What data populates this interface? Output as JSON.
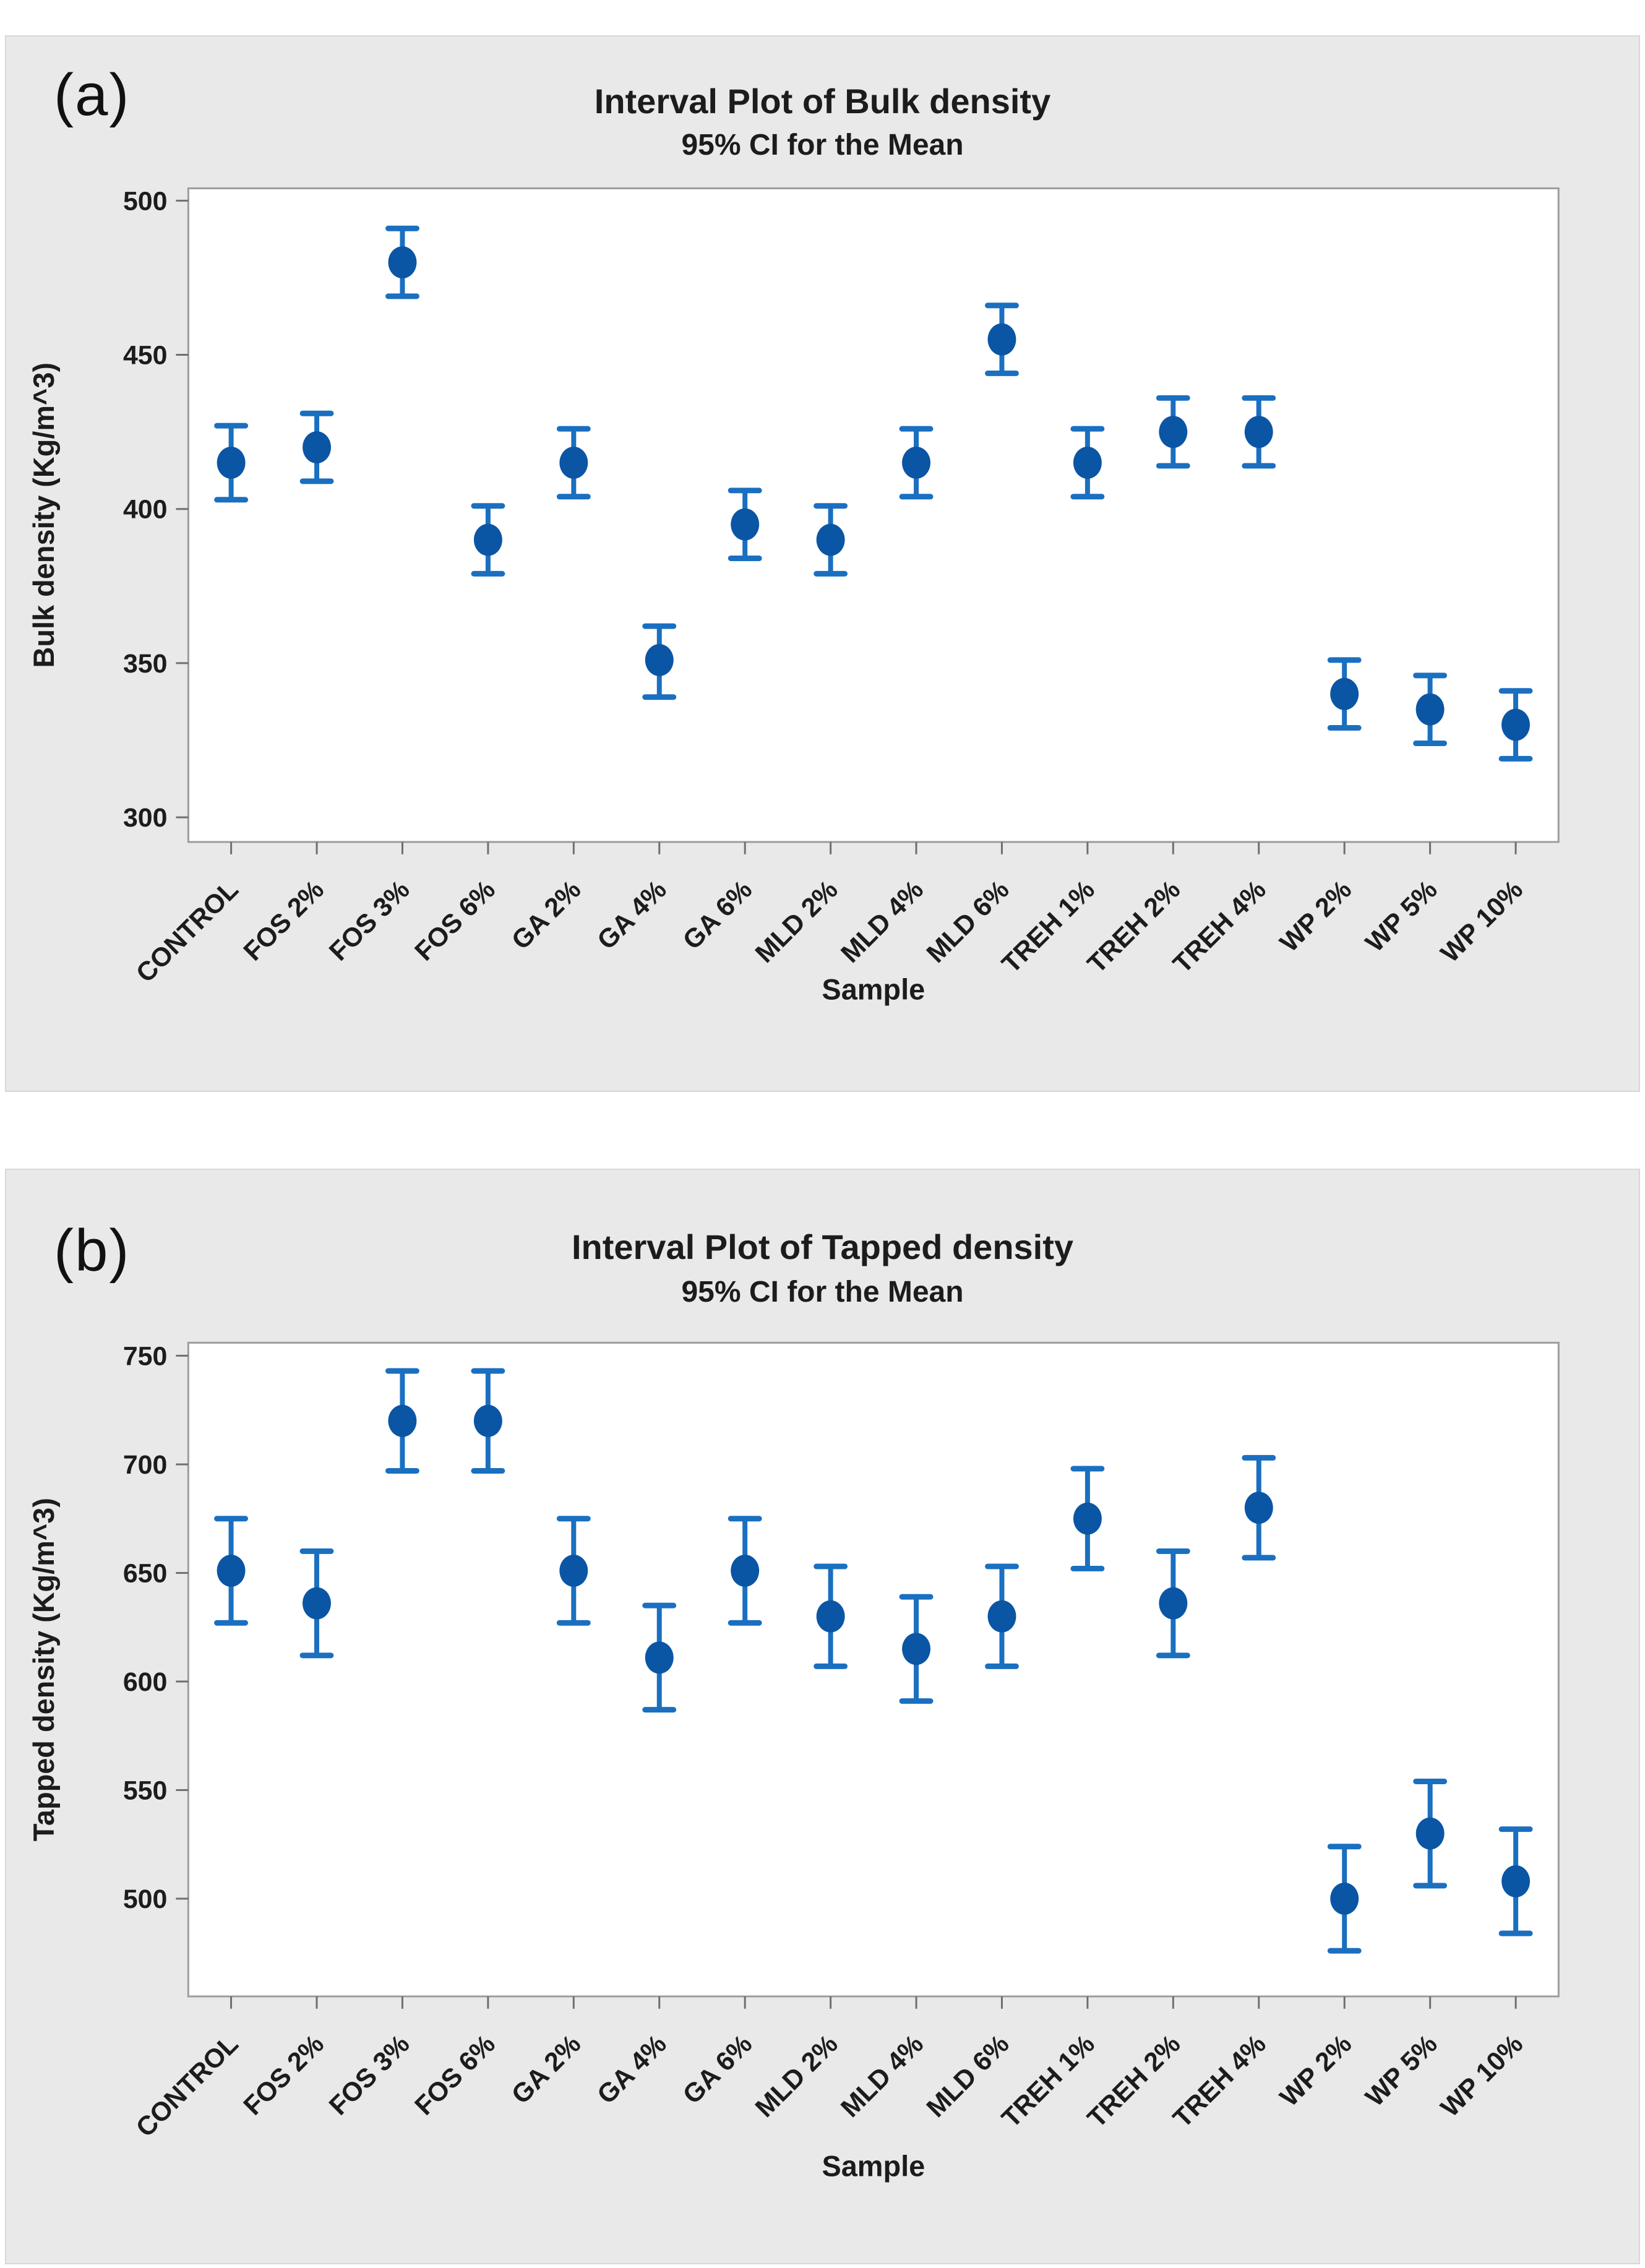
{
  "figure": {
    "background": "#ffffff"
  },
  "colors": {
    "panel_background": "#e9e9e9",
    "panel_border": "#d7d7d7",
    "plot_background": "#ffffff",
    "plot_frame": "#9c9c9c",
    "tick": "#6f6f6f",
    "text": "#1c1c1c",
    "marker_fill": "#0b55a5",
    "interval_line": "#1a6fc0"
  },
  "chart_data": [
    {
      "panel_label": "(a)",
      "type": "interval",
      "title": "Interval Plot of Bulk density",
      "subtitle": "95% CI for the Mean",
      "xlabel": "Sample",
      "ylabel": "Bulk density (Kg/m^3)",
      "categories": [
        "CONTROL",
        "FOS 2%",
        "FOS 3%",
        "FOS 6%",
        "GA 2%",
        "GA 4%",
        "GA 6%",
        "MLD 2%",
        "MLD 4%",
        "MLD 6%",
        "TREH 1%",
        "TREH 2%",
        "TREH 4%",
        "WP 2%",
        "WP 5%",
        "WP 10%"
      ],
      "means": [
        415,
        420,
        480,
        390,
        415,
        351,
        395,
        390,
        415,
        455,
        415,
        425,
        425,
        340,
        335,
        330
      ],
      "ci_low": [
        403,
        409,
        469,
        379,
        404,
        339,
        384,
        379,
        404,
        444,
        404,
        414,
        414,
        329,
        324,
        319
      ],
      "ci_high": [
        427,
        431,
        491,
        401,
        426,
        362,
        406,
        401,
        426,
        466,
        426,
        436,
        436,
        351,
        346,
        341
      ],
      "yticks": [
        300,
        350,
        400,
        450,
        500
      ],
      "ylim": [
        292,
        504
      ],
      "grid": false,
      "legend": "none"
    },
    {
      "panel_label": "(b)",
      "type": "interval",
      "title": "Interval Plot of Tapped density",
      "subtitle": "95% CI for the Mean",
      "xlabel": "Sample",
      "ylabel": "Tapped density (Kg/m^3)",
      "categories": [
        "CONTROL",
        "FOS 2%",
        "FOS 3%",
        "FOS 6%",
        "GA 2%",
        "GA 4%",
        "GA 6%",
        "MLD 2%",
        "MLD 4%",
        "MLD 6%",
        "TREH 1%",
        "TREH 2%",
        "TREH 4%",
        "WP 2%",
        "WP 5%",
        "WP 10%"
      ],
      "means": [
        651,
        636,
        720,
        720,
        651,
        611,
        651,
        630,
        615,
        630,
        675,
        636,
        680,
        500,
        530,
        508
      ],
      "ci_low": [
        627,
        612,
        697,
        697,
        627,
        587,
        627,
        607,
        591,
        607,
        652,
        612,
        657,
        476,
        506,
        484
      ],
      "ci_high": [
        675,
        660,
        743,
        743,
        675,
        635,
        675,
        653,
        639,
        653,
        698,
        660,
        703,
        524,
        554,
        532
      ],
      "yticks": [
        500,
        550,
        600,
        650,
        700,
        750
      ],
      "ylim": [
        455,
        756
      ],
      "grid": false,
      "legend": "none"
    }
  ]
}
